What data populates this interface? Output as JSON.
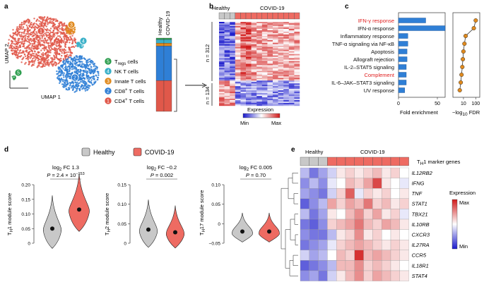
{
  "panels": {
    "a": {
      "label": "a",
      "x_axis": "UMAP 1",
      "y_axis": "UMAP 2",
      "cluster_numbers": [
        "1",
        "2",
        "3",
        "4",
        "5"
      ],
      "bar_labels": [
        "Healthy",
        "COVID-19"
      ],
      "legend": [
        {
          "num": "5",
          "name": "T",
          "sub": "regs",
          "suffix": " cells",
          "color": "#2e9e4f"
        },
        {
          "num": "4",
          "name": "NK T cells",
          "sub": "",
          "suffix": "",
          "color": "#3ab0c8"
        },
        {
          "num": "3",
          "name": "Innate T cells",
          "sub": "",
          "suffix": "",
          "color": "#e08a1e"
        },
        {
          "num": "2",
          "name": "CD8",
          "sub": "",
          "sup": "+",
          "suffix": " T cells",
          "color": "#2f7fd6"
        },
        {
          "num": "1",
          "name": "CD4",
          "sub": "",
          "sup": "+",
          "suffix": " T cells",
          "color": "#e0584a"
        }
      ],
      "composition": {
        "healthy": [
          0.02,
          0.05,
          0.04,
          0.47,
          0.42
        ],
        "covid": [
          0.02,
          0.05,
          0.04,
          0.47,
          0.42
        ]
      }
    },
    "b": {
      "label": "b",
      "healthy_label": "Healthy",
      "covid_label": "COVID-19",
      "n_top": "n = 312",
      "n_bottom": "n = 134",
      "legend_title": "Expression",
      "min_label": "Min",
      "max_label": "Max"
    },
    "c": {
      "label": "c",
      "xlabel_left": "Fold enrichment",
      "xlabel_right_prefix": "−log",
      "xlabel_right_sub": "10",
      "xlabel_right_suffix": " FDR",
      "left_ticks": [
        "0",
        "50"
      ],
      "right_ticks": [
        "10",
        "100"
      ],
      "highlight_color": "#e02020",
      "pathways": [
        {
          "name": "IFN-γ response",
          "highlight": true
        },
        {
          "name": "IFN-α response",
          "highlight": false
        },
        {
          "name": "Inflammatory response",
          "highlight": false
        },
        {
          "name": "TNF-α signaling via NF-κB",
          "highlight": false
        },
        {
          "name": "Apoptosis",
          "highlight": false
        },
        {
          "name": "Allograft rejection",
          "highlight": false
        },
        {
          "name": "IL-2–STAT5 signaling",
          "highlight": false
        },
        {
          "name": "Complement",
          "highlight": true
        },
        {
          "name": "IL-6–JAK–STAT3 signaling",
          "highlight": false
        },
        {
          "name": "UV response",
          "highlight": false
        }
      ]
    },
    "d": {
      "label": "d",
      "legend_healthy": "Healthy",
      "legend_covid": "COVID-19",
      "healthy_color": "#c8c8c8",
      "covid_color": "#ee6b62",
      "subplots": [
        {
          "fc_prefix": "log",
          "fc_sub": "2",
          "fc_text": " FC 1.3",
          "p_text": "P = 2.4 × 10",
          "p_exp": "−153",
          "ylabel_pre": "T",
          "ylabel_sub": "H",
          "ylabel_post": "1 module score",
          "ticks": [
            "0.20",
            "0.15",
            "0.10",
            "0.05",
            "0"
          ]
        },
        {
          "fc_prefix": "log",
          "fc_sub": "2",
          "fc_text": " FC −0.2",
          "p_text": "P = 0.002",
          "p_exp": "",
          "ylabel_pre": "T",
          "ylabel_sub": "H",
          "ylabel_post": "2 module score",
          "ticks": [
            "0.15",
            "0.10",
            "0.05",
            "0"
          ]
        },
        {
          "fc_prefix": "log",
          "fc_sub": "2",
          "fc_text": " FC 0.005",
          "p_text": "P = 0.70",
          "p_exp": "",
          "ylabel_pre": "T",
          "ylabel_sub": "H",
          "ylabel_post": "17 module score",
          "ticks": [
            "0.10",
            "0.05",
            "0",
            "−0.05"
          ]
        }
      ]
    },
    "e": {
      "label": "e",
      "healthy_label": "Healthy",
      "covid_label": "COVID-19",
      "marker_pre": "T",
      "marker_sub": "H",
      "marker_post": "1 marker genes",
      "legend_title": "Expression",
      "max_label": "Max",
      "min_label": "Min",
      "genes": [
        "IL12RB2",
        "IFNG",
        "TNF",
        "STAT1",
        "TBX21",
        "IL10RB",
        "CXCR3",
        "IL27RA",
        "CCR5",
        "IL18R1",
        "STAT4"
      ],
      "heatmap": [
        [
          -0.3,
          -0.6,
          -0.4,
          -0.2,
          0.1,
          0.2,
          0.1,
          0.2,
          0.3,
          0.1,
          0.2,
          0.0
        ],
        [
          -0.5,
          -0.3,
          -0.5,
          -0.1,
          0.0,
          0.3,
          0.2,
          0.4,
          0.8,
          0.1,
          0.0,
          -0.1
        ],
        [
          -0.4,
          -0.5,
          -0.6,
          -0.2,
          0.2,
          0.7,
          -0.1,
          0.2,
          0.1,
          0.2,
          0.0,
          0.1
        ],
        [
          -0.7,
          -0.5,
          -0.3,
          0.4,
          0.2,
          0.4,
          0.3,
          0.6,
          0.2,
          0.3,
          0.1,
          0.2
        ],
        [
          -0.3,
          -0.6,
          -0.4,
          0.1,
          0.0,
          0.3,
          0.5,
          0.2,
          0.4,
          0.1,
          0.2,
          -0.1
        ],
        [
          -0.6,
          -0.7,
          -0.5,
          0.2,
          0.3,
          0.4,
          0.6,
          0.3,
          0.2,
          0.4,
          0.3,
          0.1
        ],
        [
          -0.5,
          -0.6,
          -0.6,
          -0.3,
          0.1,
          0.2,
          0.5,
          0.1,
          0.2,
          0.0,
          0.1,
          0.0
        ],
        [
          -0.6,
          -0.5,
          -0.4,
          -0.1,
          0.2,
          0.3,
          0.4,
          0.3,
          0.2,
          0.1,
          0.2,
          0.1
        ],
        [
          -0.2,
          -0.4,
          -0.3,
          0.0,
          0.3,
          0.2,
          0.9,
          0.3,
          0.4,
          0.3,
          0.2,
          0.1
        ],
        [
          -0.7,
          -0.6,
          -0.5,
          -0.3,
          0.3,
          0.3,
          0.5,
          0.2,
          0.3,
          0.2,
          0.1,
          0.0
        ],
        [
          -0.5,
          -0.4,
          -0.6,
          -0.2,
          0.1,
          0.3,
          0.5,
          0.2,
          0.4,
          0.3,
          0.2,
          0.1
        ]
      ]
    }
  }
}
